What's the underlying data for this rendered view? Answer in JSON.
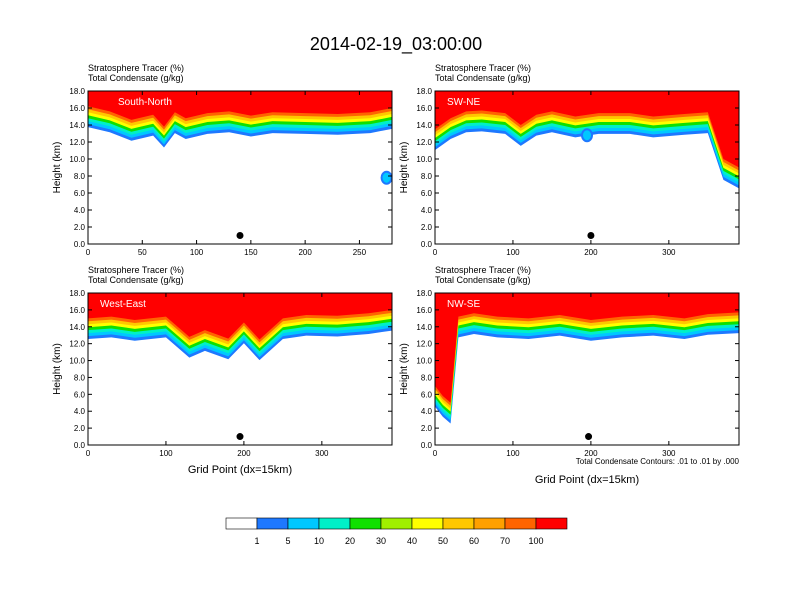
{
  "figure": {
    "title": "2014-02-19_03:00:00"
  },
  "common": {
    "tracer_label": "Stratosphere Tracer   (%)",
    "condensate_label": "Total Condensate   (g/kg)",
    "ylabel": "Height (km)",
    "xlabel": "Grid Point (dx=15km)",
    "contour_note": "Total Condensate Contours: .01 to .01 by .000"
  },
  "colorbar": {
    "levels": [
      "1",
      "5",
      "10",
      "20",
      "30",
      "40",
      "50",
      "60",
      "70",
      "100"
    ],
    "colors": [
      "#ffffff",
      "#1e78ff",
      "#00c8ff",
      "#00f0c8",
      "#10e000",
      "#a0f000",
      "#ffff00",
      "#ffc800",
      "#ffa000",
      "#ff6400",
      "#ff0000"
    ]
  },
  "chart_data": [
    {
      "type": "heatmap",
      "name": "South-North",
      "xlim": [
        0,
        280
      ],
      "ylim": [
        0,
        18
      ],
      "xticks": [
        0,
        50,
        100,
        150,
        200,
        250
      ],
      "yticks": [
        "0.0",
        "2.0",
        "4.0",
        "6.0",
        "8.0",
        "10.0",
        "12.0",
        "14.0",
        "16.0",
        "18.0"
      ],
      "tropopause_x": [
        0,
        20,
        40,
        60,
        70,
        80,
        90,
        110,
        130,
        150,
        170,
        200,
        230,
        260,
        280
      ],
      "tropopause_km": [
        16.2,
        15.6,
        14.6,
        15.2,
        13.8,
        15.5,
        14.8,
        15.4,
        15.6,
        15.1,
        15.5,
        15.4,
        15.3,
        15.5,
        16.0
      ],
      "blobs": [
        {
          "x": 275,
          "km": 7.8
        }
      ],
      "dot": {
        "x": 140,
        "km": 1.0
      }
    },
    {
      "type": "heatmap",
      "name": "SW-NE",
      "xlim": [
        0,
        390
      ],
      "ylim": [
        0,
        18
      ],
      "xticks": [
        0,
        100,
        200,
        300
      ],
      "yticks": [
        "0.0",
        "2.0",
        "4.0",
        "6.0",
        "8.0",
        "10.0",
        "12.0",
        "14.0",
        "16.0",
        "18.0"
      ],
      "tropopause_x": [
        0,
        20,
        40,
        60,
        90,
        110,
        130,
        150,
        180,
        210,
        250,
        280,
        320,
        350,
        370,
        390
      ],
      "tropopause_km": [
        13.5,
        14.8,
        15.6,
        15.7,
        15.4,
        14.0,
        15.2,
        15.6,
        15.0,
        15.4,
        15.4,
        15.0,
        15.3,
        15.5,
        10.0,
        9.0
      ],
      "blobs": [
        {
          "x": 195,
          "km": 12.8
        }
      ],
      "dot": {
        "x": 200,
        "km": 1.0
      }
    },
    {
      "type": "heatmap",
      "name": "West-East",
      "xlim": [
        0,
        390
      ],
      "ylim": [
        0,
        18
      ],
      "xticks": [
        0,
        100,
        200,
        300
      ],
      "yticks": [
        "0.0",
        "2.0",
        "4.0",
        "6.0",
        "8.0",
        "10.0",
        "12.0",
        "14.0",
        "16.0",
        "18.0"
      ],
      "tropopause_x": [
        0,
        30,
        60,
        100,
        130,
        150,
        180,
        200,
        220,
        250,
        280,
        320,
        360,
        390
      ],
      "tropopause_km": [
        15.0,
        15.2,
        14.8,
        15.2,
        12.8,
        13.6,
        12.6,
        14.5,
        12.5,
        15.0,
        15.4,
        15.3,
        15.6,
        16.0
      ],
      "blobs": [],
      "dot": {
        "x": 195,
        "km": 1.0
      }
    },
    {
      "type": "heatmap",
      "name": "NW-SE",
      "xlim": [
        0,
        390
      ],
      "ylim": [
        0,
        18
      ],
      "xticks": [
        0,
        100,
        200,
        300
      ],
      "yticks": [
        "0.0",
        "2.0",
        "4.0",
        "6.0",
        "8.0",
        "10.0",
        "12.0",
        "14.0",
        "16.0",
        "18.0"
      ],
      "tropopause_x": [
        0,
        10,
        20,
        30,
        50,
        80,
        120,
        160,
        200,
        240,
        280,
        320,
        350,
        390
      ],
      "tropopause_km": [
        7.0,
        5.8,
        5.0,
        15.2,
        15.6,
        15.2,
        15.0,
        15.4,
        14.8,
        15.2,
        15.4,
        15.0,
        15.5,
        15.7
      ],
      "blobs": [],
      "dot": {
        "x": 197,
        "km": 1.0
      }
    }
  ]
}
